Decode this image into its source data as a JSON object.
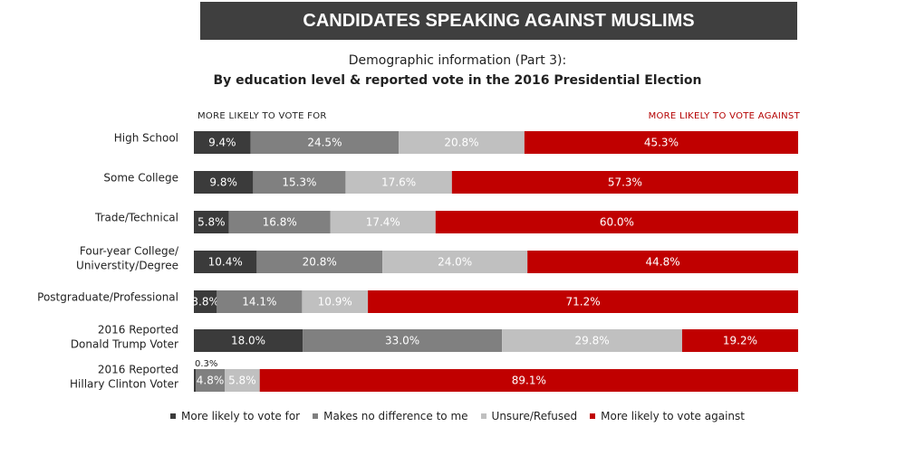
{
  "title": "CANDIDATES SPEAKING AGAINST MUSLIMS",
  "subtitle_line1": "Demographic information (Part 3):",
  "subtitle_line2": "By education level & reported vote in the 2016 Presidential Election",
  "header_left": "MORE LIKELY TO VOTE FOR",
  "header_right": "MORE LIKELY TO VOTE AGAINST",
  "colors": {
    "more_likely_for": "#3b3b3b",
    "no_difference": "#808080",
    "unsure": "#c0c0c0",
    "more_likely_against": "#c00000"
  },
  "chart_data": {
    "type": "bar",
    "orientation": "horizontal",
    "stacked": true,
    "categories": [
      [
        "High School"
      ],
      [
        "Some College"
      ],
      [
        "Trade/Technical"
      ],
      [
        "Four-year College/",
        "Universtity/Degree"
      ],
      [
        "Postgraduate/Professional"
      ],
      [
        "2016 Reported",
        "Donald Trump Voter"
      ],
      [
        "2016 Reported",
        "Hillary Clinton Voter"
      ]
    ],
    "series": [
      {
        "name": "More likely to vote for",
        "color": "#3b3b3b",
        "values": [
          9.4,
          9.8,
          5.8,
          10.4,
          3.8,
          18.0,
          0.3
        ]
      },
      {
        "name": "Makes no difference to me",
        "color": "#808080",
        "values": [
          24.5,
          15.3,
          16.8,
          20.8,
          14.1,
          33.0,
          4.8
        ]
      },
      {
        "name": "Unsure/Refused",
        "color": "#c0c0c0",
        "values": [
          20.8,
          17.6,
          17.4,
          24.0,
          10.9,
          29.8,
          5.8
        ]
      },
      {
        "name": "More likely to vote against",
        "color": "#c00000",
        "values": [
          45.3,
          57.3,
          60.0,
          44.8,
          71.2,
          19.2,
          89.1
        ]
      }
    ],
    "value_suffix": "%",
    "xlim": [
      0,
      100
    ],
    "legend_position": "bottom"
  }
}
